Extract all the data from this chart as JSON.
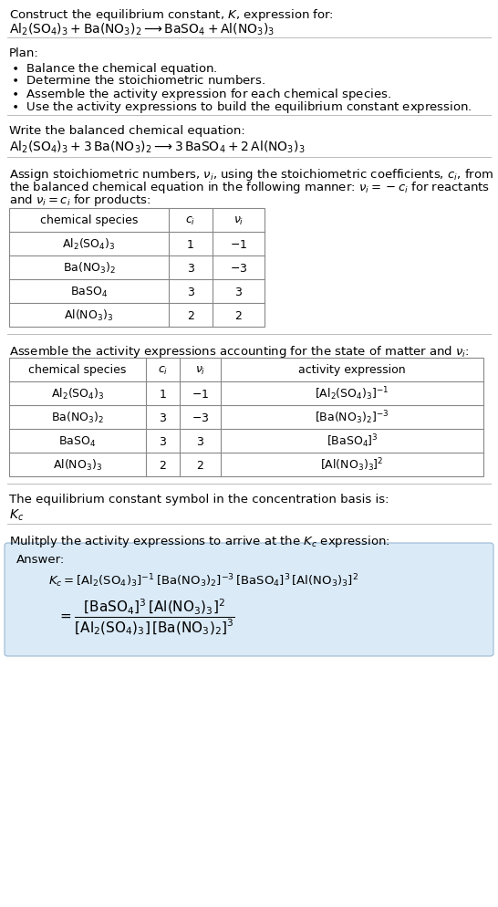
{
  "bg_color": "#ffffff",
  "title_text": "Construct the equilibrium constant, $K$, expression for:",
  "reaction_unbalanced": "$\\mathrm{Al_2(SO_4)_3 + Ba(NO_3)_2 \\longrightarrow BaSO_4 + Al(NO_3)_3}$",
  "plan_header": "Plan:",
  "plan_items": [
    "$\\bullet$  Balance the chemical equation.",
    "$\\bullet$  Determine the stoichiometric numbers.",
    "$\\bullet$  Assemble the activity expression for each chemical species.",
    "$\\bullet$  Use the activity expressions to build the equilibrium constant expression."
  ],
  "balanced_header": "Write the balanced chemical equation:",
  "balanced_eq": "$\\mathrm{Al_2(SO_4)_3 + 3\\,Ba(NO_3)_2 \\longrightarrow 3\\,BaSO_4 + 2\\,Al(NO_3)_3}$",
  "stoich_lines": [
    "Assign stoichiometric numbers, $\\nu_i$, using the stoichiometric coefficients, $c_i$, from",
    "the balanced chemical equation in the following manner: $\\nu_i = -c_i$ for reactants",
    "and $\\nu_i = c_i$ for products:"
  ],
  "table1_cols": [
    "chemical species",
    "$c_i$",
    "$\\nu_i$"
  ],
  "table1_rows": [
    [
      "$\\mathrm{Al_2(SO_4)_3}$",
      "1",
      "$-1$"
    ],
    [
      "$\\mathrm{Ba(NO_3)_2}$",
      "3",
      "$-3$"
    ],
    [
      "$\\mathrm{BaSO_4}$",
      "3",
      "3"
    ],
    [
      "$\\mathrm{Al(NO_3)_3}$",
      "2",
      "2"
    ]
  ],
  "activity_header": "Assemble the activity expressions accounting for the state of matter and $\\nu_i$:",
  "table2_cols": [
    "chemical species",
    "$c_i$",
    "$\\nu_i$",
    "activity expression"
  ],
  "table2_rows": [
    [
      "$\\mathrm{Al_2(SO_4)_3}$",
      "1",
      "$-1$",
      "$[\\mathrm{Al_2(SO_4)_3}]^{-1}$"
    ],
    [
      "$\\mathrm{Ba(NO_3)_2}$",
      "3",
      "$-3$",
      "$[\\mathrm{Ba(NO_3)_2}]^{-3}$"
    ],
    [
      "$\\mathrm{BaSO_4}$",
      "3",
      "3",
      "$[\\mathrm{BaSO_4}]^3$"
    ],
    [
      "$\\mathrm{Al(NO_3)_3}$",
      "2",
      "2",
      "$[\\mathrm{Al(NO_3)_3}]^2$"
    ]
  ],
  "kc_header": "The equilibrium constant symbol in the concentration basis is:",
  "kc_symbol": "$K_c$",
  "multiply_header": "Mulitply the activity expressions to arrive at the $K_c$ expression:",
  "answer_kc_line": "$K_c = [\\mathrm{Al_2(SO_4)_3}]^{-1}\\,[\\mathrm{Ba(NO_3)_2}]^{-3}\\,[\\mathrm{BaSO_4}]^3\\,[\\mathrm{Al(NO_3)_3}]^2$",
  "answer_frac": "$= \\dfrac{[\\mathrm{BaSO_4}]^3\\,[\\mathrm{Al(NO_3)_3}]^2}{[\\mathrm{Al_2(SO_4)_3}]\\,[\\mathrm{Ba(NO_3)_2}]^3}$",
  "answer_box_color": "#daeaf7",
  "sep_color": "#bbbbbb",
  "table_color": "#888888",
  "fs": 9.5,
  "fs_s": 9.0
}
